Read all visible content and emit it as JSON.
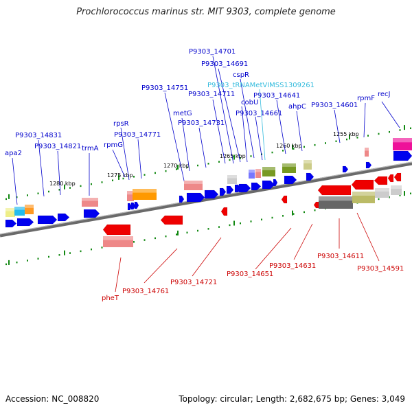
{
  "title": "Prochlorococcus marinus str. MIT 9303, complete genome",
  "accession": "Accession: NC_008820",
  "summary": "Topology: circular; Length: 2,682,675 bp; Genes: 3,049",
  "colors": {
    "forward_label": "#0000cc",
    "reverse_label": "#cc0000",
    "rna_label": "#33bbdd",
    "forward_gene": "#0000ee",
    "reverse_gene": "#ee0000",
    "tick": "#118811",
    "axis": "#808080"
  },
  "ticks": [
    "1280 kbp",
    "1275 kbp",
    "1270 kbp",
    "1265 kbp",
    "1260 kbp",
    "1255 kbp"
  ],
  "forward_labels": [
    "apa2",
    "P9303_14831",
    "P9303_14821",
    "trmA",
    "rpmG",
    "rpsR",
    "P9303_14771",
    "P9303_14751",
    "metG",
    "P9303_14731",
    "P9303_14711",
    "P9303_14701",
    "P9303_14691",
    "cspR",
    "cobU",
    "P9303_14661",
    "P9303_14641",
    "ahpC",
    "P9303_14601",
    "rpmF",
    "recJ"
  ],
  "rna_labels": [
    "P9303_tRNAMetVIMSS1309261"
  ],
  "reverse_labels": [
    "pheT",
    "P9303_14761",
    "P9303_14721",
    "P9303_14651",
    "P9303_14631",
    "P9303_14611",
    "P9303_14591"
  ]
}
